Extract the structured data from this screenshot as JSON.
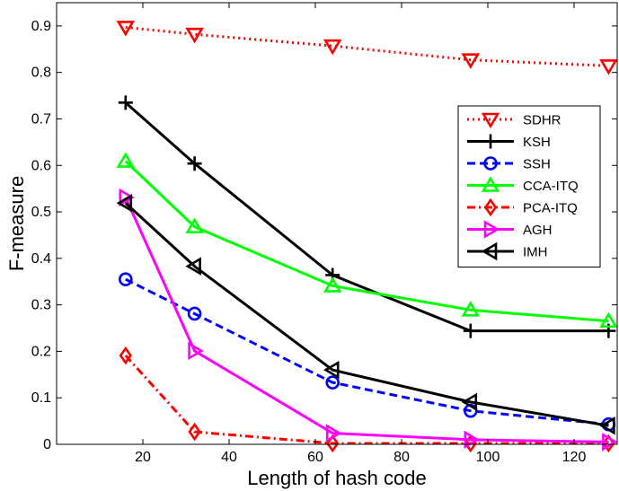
{
  "chart_data": {
    "type": "line",
    "title": "",
    "xlabel": "Length of hash code",
    "ylabel": "F-measure",
    "xlim": [
      0,
      130
    ],
    "ylim": [
      0,
      0.95
    ],
    "x_ticks": [
      20,
      40,
      60,
      80,
      100,
      120
    ],
    "y_ticks": [
      0,
      0.1,
      0.2,
      0.3,
      0.4,
      0.5,
      0.6,
      0.7,
      0.8,
      0.9
    ],
    "x_tick_labels": [
      "20",
      "40",
      "60",
      "80",
      "100",
      "120"
    ],
    "y_tick_labels": [
      "0",
      "0.1",
      "0.2",
      "0.3",
      "0.4",
      "0.5",
      "0.6",
      "0.7",
      "0.8",
      "0.9"
    ],
    "grid": false,
    "legend_position": "right",
    "x": [
      16,
      32,
      64,
      96,
      128
    ],
    "series": [
      {
        "name": "SDHR",
        "values": [
          0.897,
          0.882,
          0.857,
          0.827,
          0.814
        ],
        "color": "#ff0000",
        "dash": "dotted",
        "marker": "triangle-down"
      },
      {
        "name": "KSH",
        "values": [
          0.735,
          0.604,
          0.364,
          0.244,
          0.244
        ],
        "color": "#000000",
        "dash": "solid",
        "marker": "plus"
      },
      {
        "name": "SSH",
        "values": [
          0.355,
          0.281,
          0.133,
          0.072,
          0.043
        ],
        "color": "#0000ff",
        "dash": "dashed",
        "marker": "circle"
      },
      {
        "name": "CCA-ITQ",
        "values": [
          0.609,
          0.468,
          0.341,
          0.289,
          0.265
        ],
        "color": "#00ff00",
        "dash": "solid",
        "marker": "triangle-up"
      },
      {
        "name": "PCA-ITQ",
        "values": [
          0.191,
          0.027,
          0.002,
          0.002,
          0.002
        ],
        "color": "#ff0000",
        "dash": "dashdot",
        "marker": "diamond"
      },
      {
        "name": "AGH",
        "values": [
          0.531,
          0.201,
          0.024,
          0.01,
          0.005
        ],
        "color": "#ff00ff",
        "dash": "solid",
        "marker": "triangle-right"
      },
      {
        "name": "IMH",
        "values": [
          0.519,
          0.383,
          0.16,
          0.091,
          0.04
        ],
        "color": "#000000",
        "dash": "solid",
        "marker": "triangle-left"
      }
    ]
  }
}
